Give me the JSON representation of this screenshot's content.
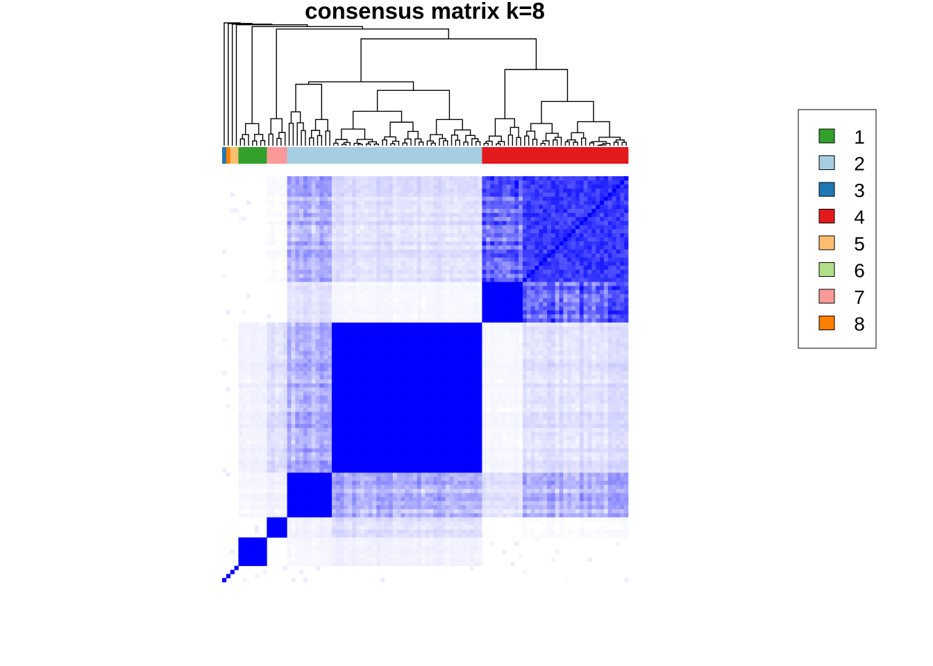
{
  "chart_data": {
    "type": "heatmap",
    "title": "consensus matrix k=8",
    "value_range": [
      0,
      1
    ],
    "color_low": "#ffffff",
    "color_high": "#0000ff",
    "legend": {
      "placement": "right",
      "entries": [
        {
          "label": "1",
          "color": "#33a02c"
        },
        {
          "label": "2",
          "color": "#a6cee3"
        },
        {
          "label": "3",
          "color": "#1f78b4"
        },
        {
          "label": "4",
          "color": "#e31a1c"
        },
        {
          "label": "5",
          "color": "#fdbf6f"
        },
        {
          "label": "6",
          "color": "#b2df8a"
        },
        {
          "label": "7",
          "color": "#fb9a99"
        },
        {
          "label": "8",
          "color": "#ff7f00"
        }
      ]
    },
    "cluster_order": [
      3,
      8,
      5,
      5,
      1,
      7,
      2,
      4
    ],
    "cluster_sizes": [
      1,
      1,
      1,
      1,
      7,
      5,
      48,
      36
    ],
    "sub_blocks": [
      {
        "cluster": "2",
        "sizes": [
          11,
          37
        ]
      },
      {
        "cluster": "4",
        "sizes": [
          10,
          26
        ]
      }
    ],
    "diagonal_blocks": [
      {
        "name": "c3",
        "start": 0,
        "size": 1,
        "value": 1.0
      },
      {
        "name": "c8",
        "start": 1,
        "size": 1,
        "value": 1.0
      },
      {
        "name": "c5a",
        "start": 2,
        "size": 1,
        "value": 1.0
      },
      {
        "name": "c5b",
        "start": 3,
        "size": 1,
        "value": 1.0
      },
      {
        "name": "c1",
        "start": 4,
        "size": 7,
        "value": 1.0
      },
      {
        "name": "c7",
        "start": 11,
        "size": 5,
        "value": 1.0
      },
      {
        "name": "c2a",
        "start": 16,
        "size": 11,
        "value": 1.0
      },
      {
        "name": "c2b",
        "start": 27,
        "size": 37,
        "value": 1.0
      },
      {
        "name": "c4a",
        "start": 64,
        "size": 10,
        "value": 1.0
      },
      {
        "name": "c4b",
        "start": 74,
        "size": 26,
        "value": 0.9
      }
    ],
    "off_diagonal_means": [
      {
        "a": "c2a",
        "b": "c2b",
        "value": 0.3
      },
      {
        "a": "c4a",
        "b": "c4b",
        "value": 0.55
      },
      {
        "a": "c2b",
        "b": "c4b",
        "value": 0.12
      },
      {
        "a": "c2a",
        "b": "c4b",
        "value": 0.3
      },
      {
        "a": "c2a",
        "b": "c4a",
        "value": 0.1
      },
      {
        "a": "c2b",
        "b": "c4a",
        "value": 0.03
      },
      {
        "a": "c1",
        "b": "c2b",
        "value": 0.05
      },
      {
        "a": "c1",
        "b": "c2a",
        "value": 0.03
      },
      {
        "a": "c7",
        "b": "c2b",
        "value": 0.12
      },
      {
        "a": "c7",
        "b": "c2a",
        "value": 0.05
      },
      {
        "a": "c7",
        "b": "c4b",
        "value": 0.02
      }
    ]
  }
}
